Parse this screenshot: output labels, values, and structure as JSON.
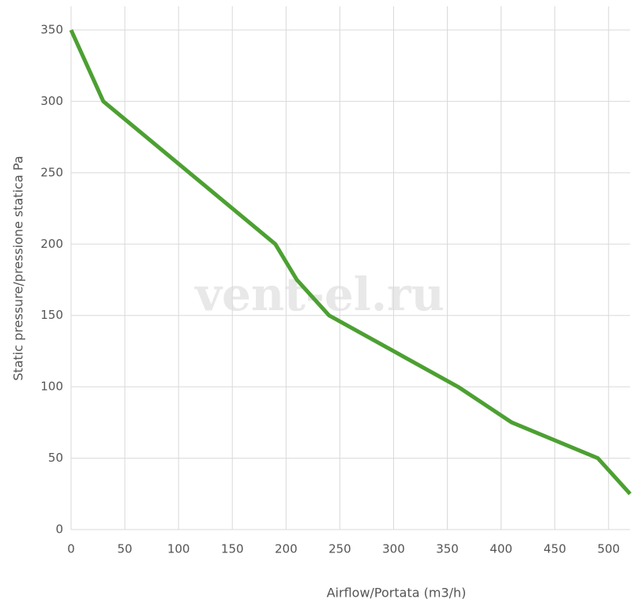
{
  "chart_data": {
    "type": "line",
    "x_label": "Airflow/Portata (m3/h)",
    "y_label": "Static pressure/pressione statica Pa",
    "watermark": "vent-el.ru",
    "series": [
      {
        "color": "#4ca032",
        "x": [
          0,
          30,
          190,
          210,
          240,
          360,
          410,
          490,
          520
        ],
        "values": [
          350,
          300,
          200,
          175,
          150,
          100,
          75,
          50,
          25
        ]
      }
    ],
    "xlim": [
      0,
      520
    ],
    "xticks": [
      0,
      50,
      100,
      150,
      200,
      250,
      300,
      350,
      400,
      450,
      500
    ],
    "ylim": [
      0,
      350
    ],
    "yticks": [
      0,
      50,
      100,
      150,
      200,
      250,
      300,
      350
    ],
    "grid": true
  }
}
